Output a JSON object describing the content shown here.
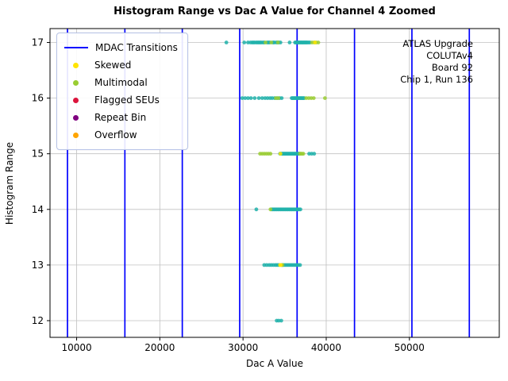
{
  "annotation": {
    "line1": "ATLAS Upgrade",
    "line2": "COLUTAv4",
    "line3": "Board 92",
    "line4": "Chip 1, Run 136"
  },
  "chart_data": {
    "type": "scatter",
    "title": "Histogram Range vs Dac A Value for Channel 4 Zoomed",
    "xlabel": "Dac A Value",
    "ylabel": "Histogram Range",
    "xlim": [
      6800,
      60800
    ],
    "ylim": [
      11.7,
      17.25
    ],
    "xticks": [
      10000,
      20000,
      30000,
      40000,
      50000
    ],
    "yticks": [
      12,
      13,
      14,
      15,
      16,
      17
    ],
    "grid": true,
    "legend_position": "upper left",
    "colors": {
      "transition": "#0000ff",
      "normal_point": "#20B2AA",
      "grid": "#c0c0c0",
      "axis": "#000000"
    },
    "mdac_transitions": [
      8900,
      15800,
      22700,
      29600,
      36500,
      43400,
      50300,
      57200
    ],
    "legend": [
      {
        "label": "MDAC Transitions",
        "type": "line",
        "color": "#0000ff"
      },
      {
        "label": "Skewed",
        "type": "dot",
        "color": "#ffe400"
      },
      {
        "label": "Multimodal",
        "type": "dot",
        "color": "#9acd32"
      },
      {
        "label": "Flagged SEUs",
        "type": "dot",
        "color": "#dc143c"
      },
      {
        "label": "Repeat Bin",
        "type": "dot",
        "color": "#800080"
      },
      {
        "label": "Overflow",
        "type": "dot",
        "color": "#ffa500"
      }
    ],
    "series": [
      {
        "name": "normal",
        "color": "#20B2AA",
        "points": [
          [
            28000,
            17
          ],
          [
            30150,
            17
          ],
          [
            30600,
            17
          ],
          [
            30900,
            17
          ],
          [
            31100,
            17
          ],
          [
            31250,
            17
          ],
          [
            31400,
            17
          ],
          [
            31600,
            17
          ],
          [
            31750,
            17
          ],
          [
            31900,
            17
          ],
          [
            32050,
            17
          ],
          [
            32200,
            17
          ],
          [
            32400,
            17
          ],
          [
            32550,
            17
          ],
          [
            32900,
            17
          ],
          [
            33050,
            17
          ],
          [
            33200,
            17
          ],
          [
            33600,
            17
          ],
          [
            33750,
            17
          ],
          [
            34000,
            17
          ],
          [
            34150,
            17
          ],
          [
            34300,
            17
          ],
          [
            34500,
            17
          ],
          [
            35600,
            17
          ],
          [
            36250,
            17
          ],
          [
            36350,
            17
          ],
          [
            36450,
            17
          ],
          [
            36550,
            17
          ],
          [
            36650,
            17
          ],
          [
            36750,
            17
          ],
          [
            36850,
            17
          ],
          [
            36950,
            17
          ],
          [
            37050,
            17
          ],
          [
            37150,
            17
          ],
          [
            37250,
            17
          ],
          [
            37350,
            17
          ],
          [
            37450,
            17
          ],
          [
            37550,
            17
          ],
          [
            37650,
            17
          ],
          [
            37750,
            17
          ],
          [
            37900,
            17
          ],
          [
            38050,
            17
          ],
          [
            29900,
            16
          ],
          [
            30250,
            16
          ],
          [
            30600,
            16
          ],
          [
            30950,
            16
          ],
          [
            31400,
            16
          ],
          [
            31900,
            16
          ],
          [
            32300,
            16
          ],
          [
            32650,
            16
          ],
          [
            32950,
            16
          ],
          [
            33250,
            16
          ],
          [
            33500,
            16
          ],
          [
            33800,
            16
          ],
          [
            34100,
            16
          ],
          [
            34400,
            16
          ],
          [
            34650,
            16
          ],
          [
            35850,
            16
          ],
          [
            35950,
            16
          ],
          [
            36050,
            16
          ],
          [
            36150,
            16
          ],
          [
            36250,
            16
          ],
          [
            36350,
            16
          ],
          [
            36450,
            16
          ],
          [
            36550,
            16
          ],
          [
            36650,
            16
          ],
          [
            36750,
            16
          ],
          [
            36850,
            16
          ],
          [
            36950,
            16
          ],
          [
            37050,
            16
          ],
          [
            37150,
            16
          ],
          [
            37250,
            16
          ],
          [
            37350,
            16
          ],
          [
            34450,
            15
          ],
          [
            34550,
            15
          ],
          [
            34650,
            15
          ],
          [
            34750,
            15
          ],
          [
            34850,
            15
          ],
          [
            34950,
            15
          ],
          [
            35050,
            15
          ],
          [
            35150,
            15
          ],
          [
            35250,
            15
          ],
          [
            35350,
            15
          ],
          [
            35450,
            15
          ],
          [
            35550,
            15
          ],
          [
            35650,
            15
          ],
          [
            35750,
            15
          ],
          [
            35850,
            15
          ],
          [
            35950,
            15
          ],
          [
            36050,
            15
          ],
          [
            36150,
            15
          ],
          [
            36250,
            15
          ],
          [
            36350,
            15
          ],
          [
            36450,
            15
          ],
          [
            36550,
            15
          ],
          [
            36650,
            15
          ],
          [
            36750,
            15
          ],
          [
            37950,
            15
          ],
          [
            38250,
            15
          ],
          [
            38550,
            15
          ],
          [
            31600,
            14
          ],
          [
            33450,
            14
          ],
          [
            33600,
            14
          ],
          [
            33750,
            14
          ],
          [
            33900,
            14
          ],
          [
            34050,
            14
          ],
          [
            34200,
            14
          ],
          [
            34350,
            14
          ],
          [
            34500,
            14
          ],
          [
            34650,
            14
          ],
          [
            34800,
            14
          ],
          [
            34950,
            14
          ],
          [
            35100,
            14
          ],
          [
            35250,
            14
          ],
          [
            35400,
            14
          ],
          [
            35550,
            14
          ],
          [
            35700,
            14
          ],
          [
            35850,
            14
          ],
          [
            36000,
            14
          ],
          [
            36150,
            14
          ],
          [
            36300,
            14
          ],
          [
            36450,
            14
          ],
          [
            36600,
            14
          ],
          [
            36750,
            14
          ],
          [
            36900,
            14
          ],
          [
            32550,
            13
          ],
          [
            32850,
            13
          ],
          [
            33150,
            13
          ],
          [
            33400,
            13
          ],
          [
            33650,
            13
          ],
          [
            33900,
            13
          ],
          [
            34100,
            13
          ],
          [
            34300,
            13
          ],
          [
            34650,
            13
          ],
          [
            34850,
            13
          ],
          [
            35050,
            13
          ],
          [
            35250,
            13
          ],
          [
            35450,
            13
          ],
          [
            35650,
            13
          ],
          [
            35850,
            13
          ],
          [
            36050,
            13
          ],
          [
            36250,
            13
          ],
          [
            36450,
            13
          ],
          [
            36650,
            13
          ],
          [
            36850,
            13
          ],
          [
            34050,
            12
          ],
          [
            34300,
            12
          ],
          [
            34600,
            12
          ]
        ]
      },
      {
        "name": "multimodal",
        "color": "#9acd32",
        "points": [
          [
            32700,
            17
          ],
          [
            33400,
            17
          ],
          [
            34200,
            17
          ],
          [
            38300,
            17
          ],
          [
            38550,
            17
          ],
          [
            38800,
            17
          ],
          [
            39050,
            17
          ],
          [
            33950,
            16
          ],
          [
            34250,
            16
          ],
          [
            37600,
            16
          ],
          [
            37900,
            16
          ],
          [
            38200,
            16
          ],
          [
            38500,
            16
          ],
          [
            39850,
            16
          ],
          [
            32050,
            15
          ],
          [
            32300,
            15
          ],
          [
            32550,
            15
          ],
          [
            32800,
            15
          ],
          [
            33050,
            15
          ],
          [
            33300,
            15
          ],
          [
            36850,
            15
          ],
          [
            36950,
            15
          ],
          [
            37100,
            15
          ],
          [
            37250,
            15
          ],
          [
            33300,
            14
          ],
          [
            34750,
            13
          ]
        ]
      },
      {
        "name": "skewed",
        "color": "#ffe400",
        "points": [
          [
            38650,
            17
          ],
          [
            34500,
            15
          ],
          [
            34450,
            13
          ],
          [
            34550,
            13
          ]
        ]
      },
      {
        "name": "flagged_seus",
        "color": "#dc143c",
        "points": []
      },
      {
        "name": "repeat_bin",
        "color": "#800080",
        "points": []
      },
      {
        "name": "overflow",
        "color": "#ffa500",
        "points": []
      }
    ]
  }
}
